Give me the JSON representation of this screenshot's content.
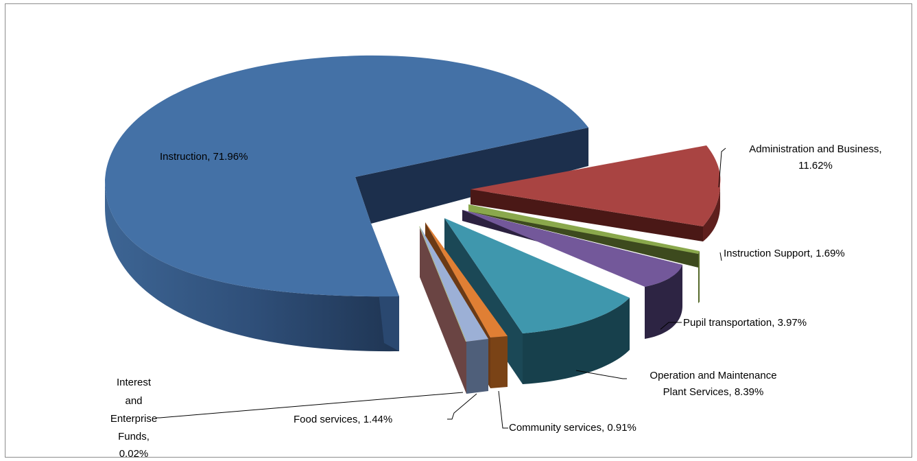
{
  "chart_data": {
    "type": "pie",
    "title": "",
    "slices": [
      {
        "name": "Instruction",
        "value": 71.96,
        "label": "Instruction, 71.96%",
        "color": "#4572a7"
      },
      {
        "name": "Administration and Business",
        "value": 11.62,
        "label_lines": [
          "Administration and Business,",
          "11.62%"
        ],
        "color": "#aa4643"
      },
      {
        "name": "Instruction Support",
        "value": 1.69,
        "label": "Instruction Support, 1.69%",
        "color": "#89a54e"
      },
      {
        "name": "Pupil transportation",
        "value": 3.97,
        "label": "Pupil transportation, 3.97%",
        "color": "#71588f"
      },
      {
        "name": "Operation and Maintenance Plant Services",
        "value": 8.39,
        "label_lines": [
          "Operation and Maintenance",
          "Plant Services, 8.39%"
        ],
        "color": "#4198af"
      },
      {
        "name": "Community services",
        "value": 0.91,
        "label": "Community services, 0.91%",
        "color": "#db843d"
      },
      {
        "name": "Food services",
        "value": 1.44,
        "label": "Food services, 1.44%",
        "color": "#93a9cf"
      },
      {
        "name": "Interest and Enterprise Funds",
        "value": 0.02,
        "label_lines": [
          "Interest",
          "and",
          "Enterprise",
          "Funds,",
          "0.02%"
        ],
        "color": "#b9cd96"
      }
    ]
  }
}
